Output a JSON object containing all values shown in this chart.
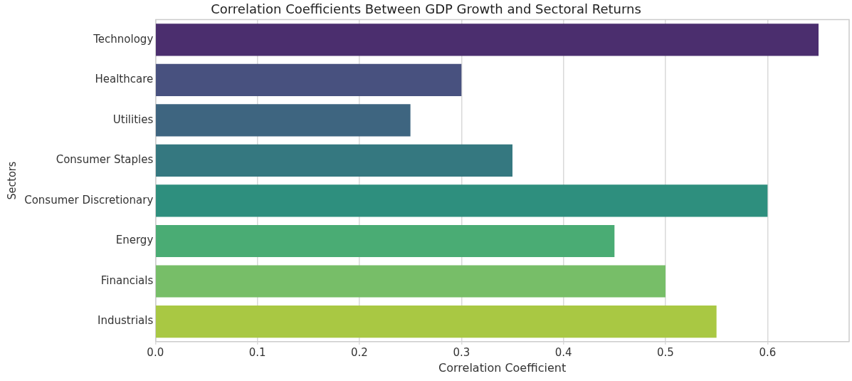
{
  "chart_data": {
    "type": "bar",
    "orientation": "horizontal",
    "title": "Correlation Coefficients Between GDP Growth and Sectoral Returns",
    "xlabel": "Correlation Coefficient",
    "ylabel": "Sectors",
    "categories": [
      "Technology",
      "Healthcare",
      "Utilities",
      "Consumer Staples",
      "Consumer Discretionary",
      "Energy",
      "Financials",
      "Industrials"
    ],
    "values": [
      0.65,
      0.3,
      0.25,
      0.35,
      0.6,
      0.45,
      0.5,
      0.55
    ],
    "colors": [
      "#4b2e6e",
      "#48517f",
      "#3e6580",
      "#357880",
      "#2e8f7e",
      "#4aac74",
      "#77be68",
      "#a9c843"
    ],
    "xlim": [
      0,
      0.68
    ],
    "xticks": [
      {
        "value": 0,
        "label": "0.0"
      },
      0.1,
      0.2,
      0.3,
      0.4,
      0.5,
      0.6
    ],
    "grid": "x",
    "legend": false
  }
}
